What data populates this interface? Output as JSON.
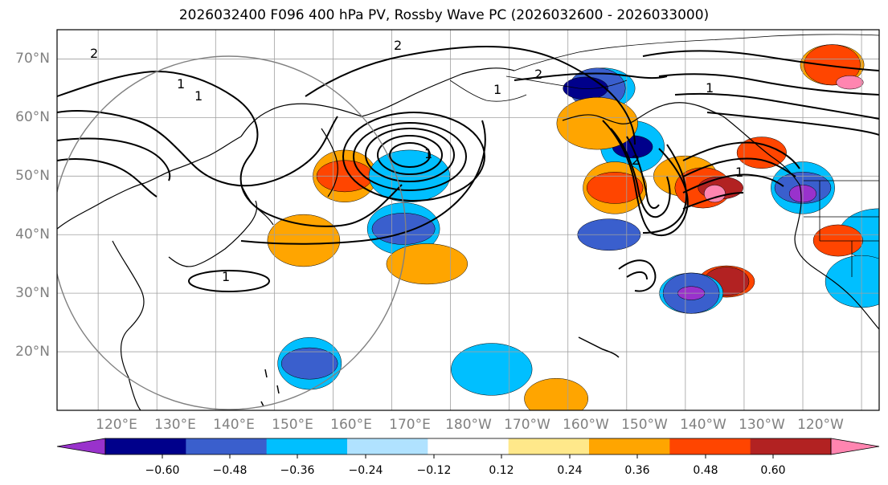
{
  "title": "2026032400 F096 400 hPa PV, Rossby Wave PC (2026032600 - 2026033000)",
  "lat_labels": [
    "70°N",
    "60°N",
    "50°N",
    "40°N",
    "30°N",
    "20°N"
  ],
  "lat_values": [
    70,
    60,
    50,
    40,
    30,
    20
  ],
  "lon_labels": [
    "120°E",
    "130°E",
    "140°E",
    "150°E",
    "160°E",
    "170°E",
    "180°W",
    "170°W",
    "160°W",
    "150°W",
    "140°W",
    "130°W",
    "120°W"
  ],
  "map_extent": {
    "lon_min": 113,
    "lon_max": 253,
    "lat_min": 10,
    "lat_max": 75
  },
  "colorbar": {
    "ticks": [
      "−0.60",
      "−0.48",
      "−0.36",
      "−0.24",
      "−0.12",
      "0.12",
      "0.24",
      "0.36",
      "0.48",
      "0.60"
    ],
    "colors": [
      "#9932CC",
      "#00008B",
      "#3A5FCD",
      "#00BFFF",
      "#B0E2FF",
      "#FFFFFF",
      "#FFE88A",
      "#FFA500",
      "#FF4500",
      "#B22222",
      "#FF85B0"
    ]
  },
  "contour_labels": [
    "2",
    "2",
    "1",
    "1",
    "1",
    "2",
    "1",
    "1",
    "1",
    "2",
    "1"
  ],
  "anomalies": [
    {
      "lon": 206,
      "lat": 65,
      "color": "#00BFFF"
    },
    {
      "lon": 205,
      "lat": 65,
      "color": "#3A5FCD"
    },
    {
      "lon": 203,
      "lat": 65,
      "color": "#00008B"
    },
    {
      "lon": 211,
      "lat": 55,
      "color": "#00BFFF"
    },
    {
      "lon": 211,
      "lat": 55,
      "color": "#00008B"
    },
    {
      "lon": 205,
      "lat": 59,
      "color": "#FFA500"
    },
    {
      "lon": 220,
      "lat": 50,
      "color": "#FFA500"
    },
    {
      "lon": 223,
      "lat": 48,
      "color": "#FF4500"
    },
    {
      "lon": 226,
      "lat": 48,
      "color": "#B22222"
    },
    {
      "lon": 225,
      "lat": 47,
      "color": "#FF85B0"
    },
    {
      "lon": 227,
      "lat": 32,
      "color": "#FF4500"
    },
    {
      "lon": 227,
      "lat": 32,
      "color": "#B22222"
    },
    {
      "lon": 221,
      "lat": 30,
      "color": "#00BFFF"
    },
    {
      "lon": 221,
      "lat": 30,
      "color": "#3A5FCD"
    },
    {
      "lon": 221,
      "lat": 30,
      "color": "#9932CC"
    },
    {
      "lon": 240,
      "lat": 48,
      "color": "#00BFFF"
    },
    {
      "lon": 240,
      "lat": 48,
      "color": "#3A5FCD"
    },
    {
      "lon": 240,
      "lat": 47,
      "color": "#9932CC"
    },
    {
      "lon": 233,
      "lat": 54,
      "color": "#FF4500"
    },
    {
      "lon": 172,
      "lat": 41,
      "color": "#00BFFF"
    },
    {
      "lon": 172,
      "lat": 41,
      "color": "#3A5FCD"
    },
    {
      "lon": 162,
      "lat": 50,
      "color": "#FFA500"
    },
    {
      "lon": 162,
      "lat": 50,
      "color": "#FF4500"
    },
    {
      "lon": 173,
      "lat": 50,
      "color": "#00BFFF"
    },
    {
      "lon": 245,
      "lat": 69,
      "color": "#FFA500"
    },
    {
      "lon": 245,
      "lat": 69,
      "color": "#FF4500"
    },
    {
      "lon": 248,
      "lat": 66,
      "color": "#FF85B0"
    },
    {
      "lon": 208,
      "lat": 48,
      "color": "#FFA500"
    },
    {
      "lon": 208,
      "lat": 48,
      "color": "#FF4500"
    },
    {
      "lon": 253,
      "lat": 40,
      "color": "#00BFFF"
    },
    {
      "lon": 246,
      "lat": 39,
      "color": "#FF4500"
    },
    {
      "lon": 155,
      "lat": 39,
      "color": "#FFA500"
    },
    {
      "lon": 176,
      "lat": 35,
      "color": "#FFA500"
    },
    {
      "lon": 156,
      "lat": 18,
      "color": "#00BFFF"
    },
    {
      "lon": 156,
      "lat": 18,
      "color": "#3A5FCD"
    },
    {
      "lon": 187,
      "lat": 17,
      "color": "#00BFFF"
    },
    {
      "lon": 198,
      "lat": 12,
      "color": "#FFA500"
    },
    {
      "lon": 250,
      "lat": 32,
      "color": "#00BFFF"
    },
    {
      "lon": 207,
      "lat": 40,
      "color": "#3A5FCD"
    }
  ]
}
